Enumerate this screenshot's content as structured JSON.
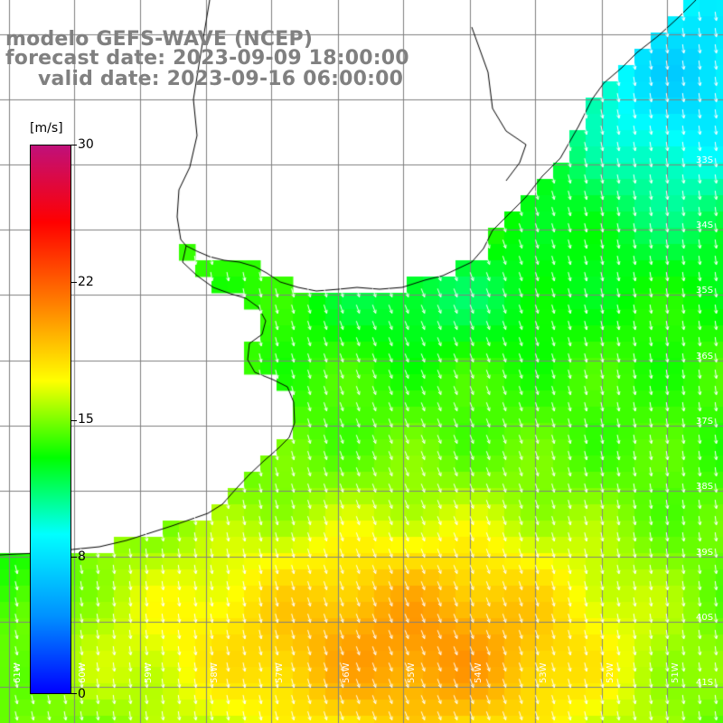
{
  "title": {
    "model": "modelo GEFS-WAVE (NCEP)",
    "forecast": "forecast date: 2023-09-09 18:00:00",
    "valid": "valid date: 2023-09-16 06:00:00"
  },
  "colorbar": {
    "unit": "[m/s]",
    "min": 0,
    "max": 30,
    "tick_labels": [
      "30",
      "22",
      "15",
      "8",
      "0"
    ],
    "tick_values": [
      30,
      22,
      15,
      8,
      0
    ],
    "colors": [
      "#0000ff",
      "#0090ff",
      "#00ffff",
      "#00ff00",
      "#ffff00",
      "#ff8000",
      "#ff0000",
      "#c0107a"
    ]
  },
  "map": {
    "variable": "wind speed with direction arrows",
    "arrow_color": "#ffffff",
    "graticule_color": "#808080",
    "coast_color": "#000000",
    "lat_labels": [
      "33S",
      "34S",
      "35S",
      "36S",
      "37S",
      "38S",
      "39S",
      "40S",
      "41S"
    ],
    "lon_labels": [
      "61W",
      "60W",
      "59W",
      "58W",
      "57W",
      "56W",
      "55W",
      "54W",
      "53W",
      "52W",
      "51W"
    ]
  }
}
